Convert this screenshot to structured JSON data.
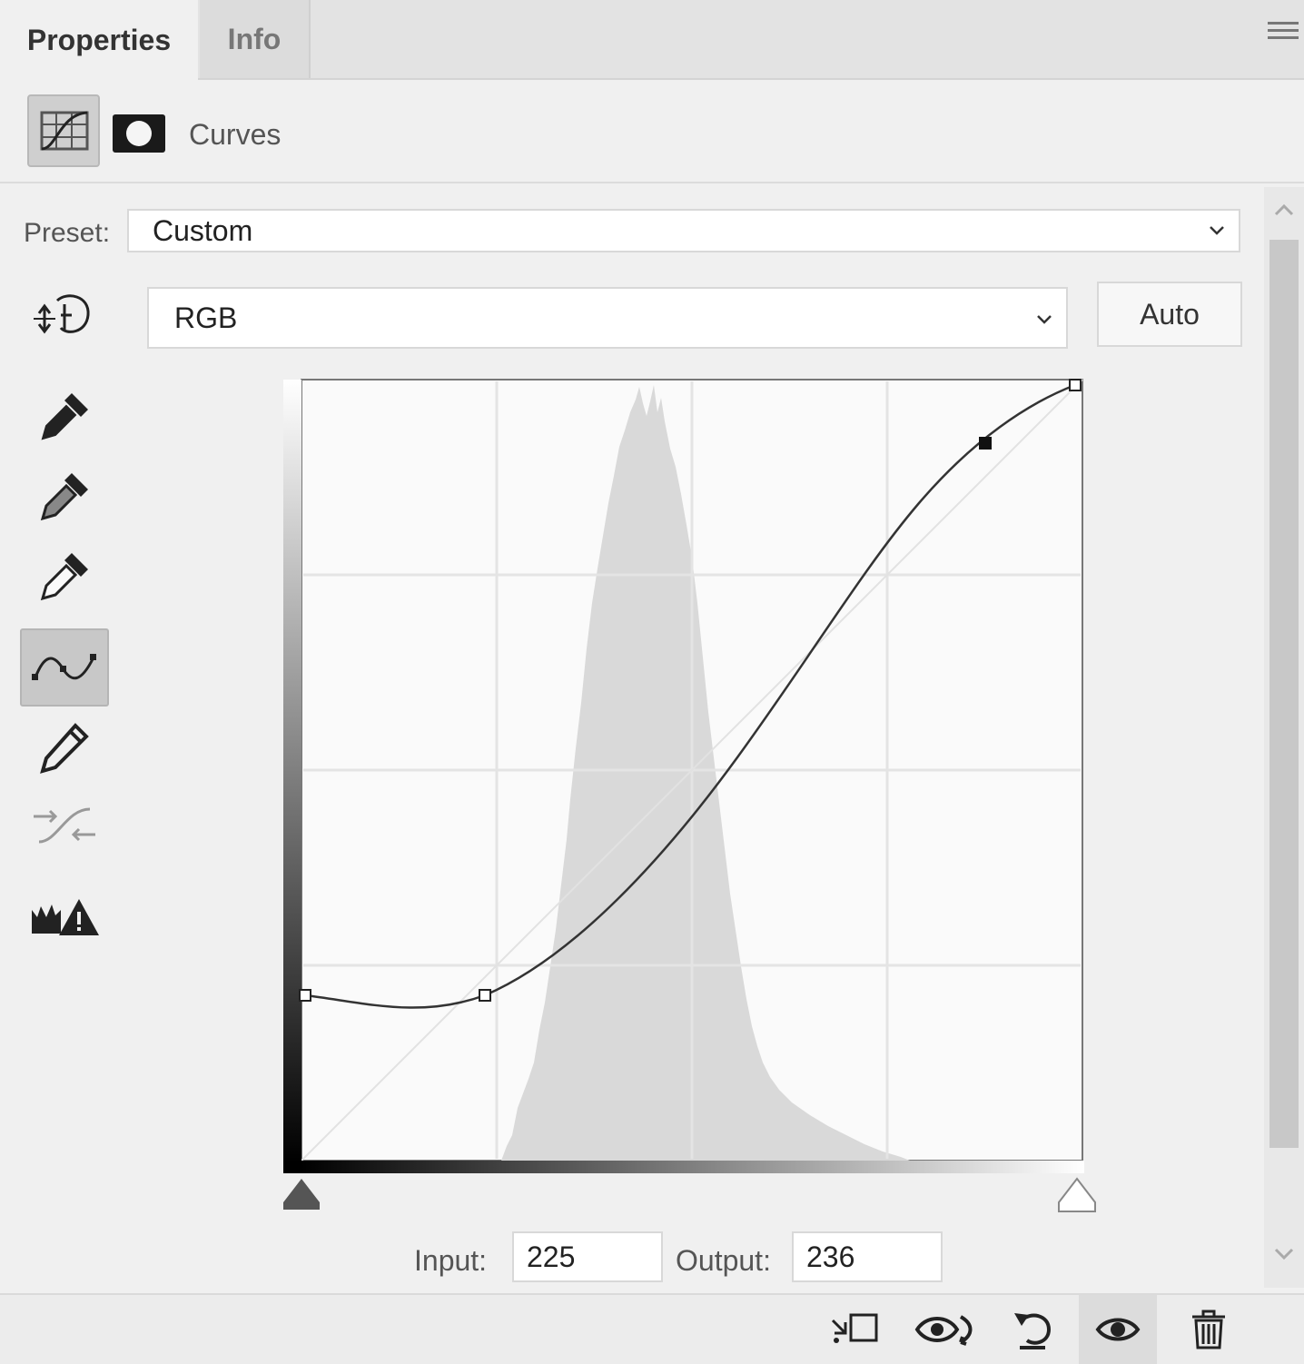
{
  "tabs": [
    {
      "label": "Properties",
      "active": true
    },
    {
      "label": "Info",
      "active": false
    }
  ],
  "header": {
    "title": "Curves"
  },
  "preset": {
    "label": "Preset:",
    "value": "Custom"
  },
  "channel": {
    "value": "RGB"
  },
  "auto_button": {
    "label": "Auto"
  },
  "tools": [
    {
      "name": "targeted-adjustment-icon"
    },
    {
      "name": "black-point-eyedropper-icon"
    },
    {
      "name": "gray-point-eyedropper-icon"
    },
    {
      "name": "white-point-eyedropper-icon"
    },
    {
      "name": "curve-points-icon",
      "selected": true
    },
    {
      "name": "pencil-icon"
    },
    {
      "name": "smooth-curve-icon"
    },
    {
      "name": "clipping-warning-icon"
    }
  ],
  "curve": {
    "points": [
      [
        0,
        70
      ],
      [
        76,
        70
      ],
      [
        225,
        236
      ],
      [
        255,
        255
      ]
    ],
    "selected_point": [
      225,
      236
    ]
  },
  "io": {
    "input_label": "Input:",
    "input_value": "225",
    "output_label": "Output:",
    "output_value": "236"
  },
  "bottom_toolbar": [
    {
      "name": "clip-to-layer-icon"
    },
    {
      "name": "view-previous-state-icon"
    },
    {
      "name": "reset-icon"
    },
    {
      "name": "toggle-visibility-icon",
      "pressed": true
    },
    {
      "name": "delete-icon"
    }
  ],
  "colors": {
    "panel": "#f0f0f0",
    "tabbar": "#e3e3e3",
    "histogram": "#d9d9d9",
    "curve": "#333333"
  }
}
